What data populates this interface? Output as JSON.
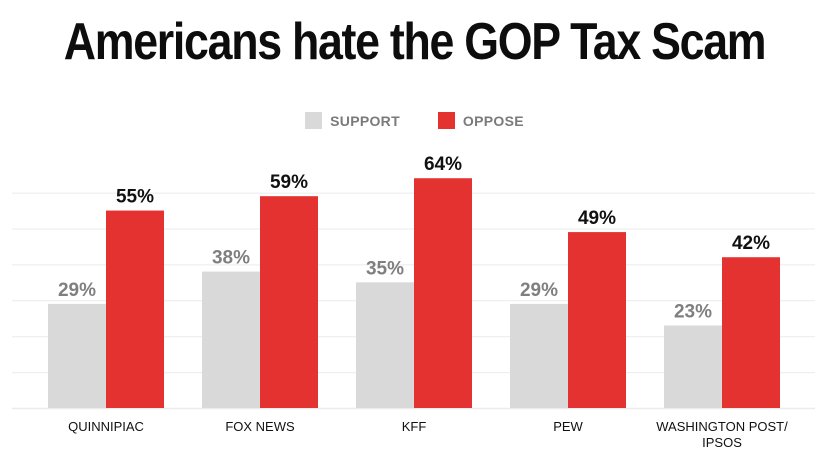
{
  "title": "Americans hate the GOP Tax Scam",
  "legend": {
    "support": "SUPPORT",
    "oppose": "OPPOSE"
  },
  "colors": {
    "support": "#d9d9d9",
    "oppose": "#e3322f",
    "support_label": "#7f7f7f",
    "oppose_label": "#111111",
    "grid": "#ebebeb"
  },
  "chart_data": {
    "type": "bar",
    "categories": [
      "QUINNIPIAC",
      "FOX NEWS",
      "KFF",
      "PEW",
      "WASHINGTON POST/ IPSOS"
    ],
    "category_lines": [
      [
        "QUINNIPIAC"
      ],
      [
        "FOX NEWS"
      ],
      [
        "KFF"
      ],
      [
        "PEW"
      ],
      [
        "WASHINGTON POST/",
        "IPSOS"
      ]
    ],
    "series": [
      {
        "name": "SUPPORT",
        "values": [
          29,
          38,
          35,
          29,
          23
        ],
        "labels": [
          "29%",
          "38%",
          "35%",
          "29%",
          "23%"
        ]
      },
      {
        "name": "OPPOSE",
        "values": [
          55,
          59,
          64,
          49,
          42
        ],
        "labels": [
          "55%",
          "59%",
          "64%",
          "49%",
          "42%"
        ]
      }
    ],
    "ylim": [
      0,
      70
    ],
    "grid": true,
    "legend_position": "top-center",
    "xlabel": "",
    "ylabel": ""
  }
}
